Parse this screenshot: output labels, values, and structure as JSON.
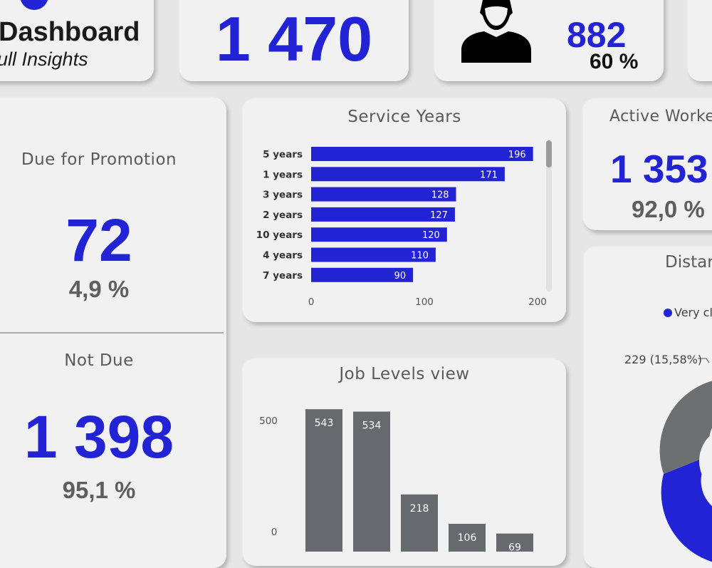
{
  "header": {
    "title": "Dashboard",
    "subtitle": "ull Insights",
    "total_employees": "1 470",
    "gender_count": "882",
    "gender_pct": "60 %"
  },
  "promotion": {
    "due_title": "Due for Promotion",
    "due_value": "72",
    "due_pct": "4,9 %",
    "notdue_title": "Not Due",
    "notdue_value": "1 398",
    "notdue_pct": "95,1 %"
  },
  "active": {
    "title": "Active Worker",
    "value": "1 353",
    "pct": "92,0 %"
  },
  "distance": {
    "title": "Distan",
    "legend_label": "Very cl",
    "slice_label": "229 (15,58%)"
  },
  "colors": {
    "accent": "#2323d6",
    "bar_gray": "#666a6e",
    "donut_gray": "#6d7073"
  },
  "chart_data": [
    {
      "type": "bar",
      "orientation": "horizontal",
      "title": "Service Years",
      "categories": [
        "5 years",
        "1 years",
        "3 years",
        "2 years",
        "10 years",
        "4 years",
        "7 years"
      ],
      "values": [
        196,
        171,
        128,
        127,
        120,
        110,
        90
      ],
      "xlim": [
        0,
        200
      ],
      "xticks": [
        "0",
        "100",
        "200"
      ],
      "color": "#2323d6"
    },
    {
      "type": "bar",
      "title": "Job Levels view",
      "values": [
        543,
        534,
        218,
        106,
        69
      ],
      "yticks": [
        "500",
        "0"
      ],
      "ylim": [
        0,
        560
      ],
      "color": "#666a6e"
    }
  ]
}
